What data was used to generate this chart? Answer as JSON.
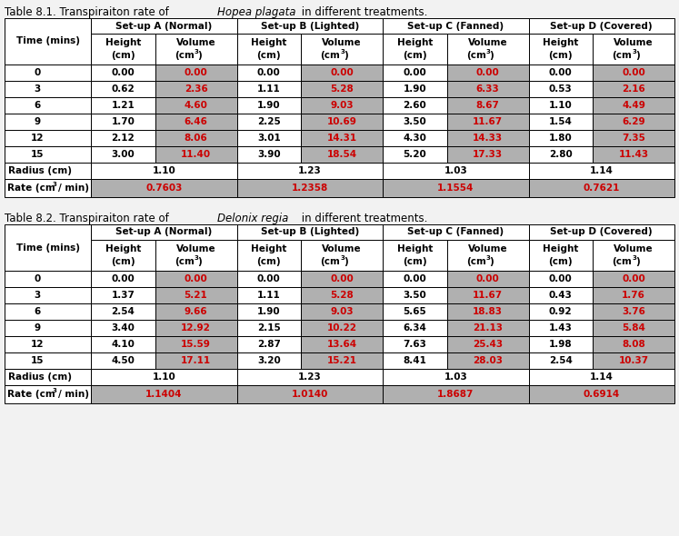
{
  "table1_title_normal": "Table 8.1. Transpiraiton rate of ",
  "table1_title_italic": "Hopea plagata",
  "table1_title_end": " in different treatments.",
  "table2_title_normal": "Table 8.2. Transpiraiton rate of ",
  "table2_title_italic": "Delonix regia",
  "table2_title_end": " in different treatments.",
  "setup_headers": [
    "Set-up A (Normal)",
    "Set-up B (Lighted)",
    "Set-up C (Fanned)",
    "Set-up D (Covered)"
  ],
  "time_rows": [
    "0",
    "3",
    "6",
    "9",
    "12",
    "15"
  ],
  "table1_data": [
    [
      "0.00",
      "0.00",
      "0.00",
      "0.00",
      "0.00",
      "0.00",
      "0.00",
      "0.00"
    ],
    [
      "0.62",
      "2.36",
      "1.11",
      "5.28",
      "1.90",
      "6.33",
      "0.53",
      "2.16"
    ],
    [
      "1.21",
      "4.60",
      "1.90",
      "9.03",
      "2.60",
      "8.67",
      "1.10",
      "4.49"
    ],
    [
      "1.70",
      "6.46",
      "2.25",
      "10.69",
      "3.50",
      "11.67",
      "1.54",
      "6.29"
    ],
    [
      "2.12",
      "8.06",
      "3.01",
      "14.31",
      "4.30",
      "14.33",
      "1.80",
      "7.35"
    ],
    [
      "3.00",
      "11.40",
      "3.90",
      "18.54",
      "5.20",
      "17.33",
      "2.80",
      "11.43"
    ]
  ],
  "table1_radius": [
    "1.10",
    "1.23",
    "1.03",
    "1.14"
  ],
  "table1_rate": [
    "0.7603",
    "1.2358",
    "1.1554",
    "0.7621"
  ],
  "table2_data": [
    [
      "0.00",
      "0.00",
      "0.00",
      "0.00",
      "0.00",
      "0.00",
      "0.00",
      "0.00"
    ],
    [
      "1.37",
      "5.21",
      "1.11",
      "5.28",
      "3.50",
      "11.67",
      "0.43",
      "1.76"
    ],
    [
      "2.54",
      "9.66",
      "1.90",
      "9.03",
      "5.65",
      "18.83",
      "0.92",
      "3.76"
    ],
    [
      "3.40",
      "12.92",
      "2.15",
      "10.22",
      "6.34",
      "21.13",
      "1.43",
      "5.84"
    ],
    [
      "4.10",
      "15.59",
      "2.87",
      "13.64",
      "7.63",
      "25.43",
      "1.98",
      "8.08"
    ],
    [
      "4.50",
      "17.11",
      "3.20",
      "15.21",
      "8.41",
      "28.03",
      "2.54",
      "10.37"
    ]
  ],
  "table2_radius": [
    "1.10",
    "1.23",
    "1.03",
    "1.14"
  ],
  "table2_rate": [
    "1.1404",
    "1.0140",
    "1.8687",
    "0.6914"
  ],
  "bg_color": "#f2f2f2",
  "volume_bg": "#b0b0b0",
  "volume_text": "#cc0000",
  "rate_bg": "#b0b0b0",
  "rate_text": "#cc0000",
  "font_size": 7.5,
  "title_font_size": 8.5,
  "header_font_size": 7.5
}
